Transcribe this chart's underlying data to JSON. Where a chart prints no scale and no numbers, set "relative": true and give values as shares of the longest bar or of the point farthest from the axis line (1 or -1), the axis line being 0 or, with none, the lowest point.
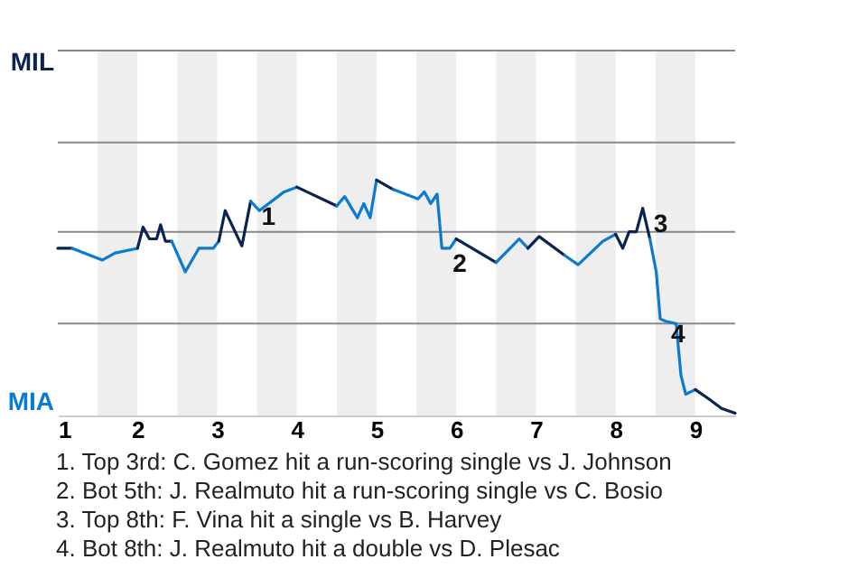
{
  "chart_data": {
    "type": "line",
    "relative": true,
    "xlim": [
      1,
      9.5
    ],
    "xticks": [
      1,
      2,
      3,
      4,
      5,
      6,
      7,
      8,
      9
    ],
    "ref_lines": [
      {
        "axis": "y",
        "value": 0.39,
        "color": "#888888"
      },
      {
        "axis": "y",
        "value": 0.78,
        "color": "#888888"
      },
      {
        "axis": "y",
        "value": 1.16,
        "color": "#888888"
      },
      {
        "axis": "y",
        "value": 1.55,
        "color": "#888888"
      }
    ],
    "bands": [
      {
        "axis": "x",
        "from": 1.5,
        "to": 2,
        "color": "#eeeeee"
      },
      {
        "axis": "x",
        "from": 2.5,
        "to": 3,
        "color": "#eeeeee"
      },
      {
        "axis": "x",
        "from": 3.5,
        "to": 4,
        "color": "#eeeeee"
      },
      {
        "axis": "x",
        "from": 4.5,
        "to": 5,
        "color": "#eeeeee"
      },
      {
        "axis": "x",
        "from": 5.5,
        "to": 6,
        "color": "#eeeeee"
      },
      {
        "axis": "x",
        "from": 6.5,
        "to": 7,
        "color": "#eeeeee"
      },
      {
        "axis": "x",
        "from": 7.5,
        "to": 8,
        "color": "#eeeeee"
      },
      {
        "axis": "x",
        "from": 8.5,
        "to": 9,
        "color": "#eeeeee"
      }
    ],
    "series": [
      {
        "color": "#0a2351",
        "x": [
          1,
          1.18
        ],
        "values": [
          0.71,
          0.71
        ]
      },
      {
        "color": "#0a7bd0",
        "x": [
          1.18,
          1.56,
          1.72,
          2
        ],
        "values": [
          0.71,
          0.66,
          0.69,
          0.71
        ]
      },
      {
        "color": "#0a2351",
        "x": [
          2,
          2.07,
          2.15,
          2.24,
          2.29,
          2.35,
          2.43
        ],
        "values": [
          0.71,
          0.8,
          0.75,
          0.75,
          0.81,
          0.74,
          0.74
        ]
      },
      {
        "color": "#0a7bd0",
        "x": [
          2.43,
          2.6,
          2.77,
          2.95,
          3.02
        ],
        "values": [
          0.74,
          0.61,
          0.71,
          0.71,
          0.74
        ]
      },
      {
        "color": "#0a2351",
        "x": [
          3.02,
          3.1,
          3.31,
          3.42
        ],
        "values": [
          0.74,
          0.87,
          0.72,
          0.91
        ]
      },
      {
        "color": "#0a7bd0",
        "x": [
          3.42,
          3.53,
          3.84,
          4
        ],
        "values": [
          0.91,
          0.87,
          0.95,
          0.97
        ]
      },
      {
        "color": "#0a2351",
        "x": [
          4,
          4.5
        ],
        "values": [
          0.97,
          0.89
        ]
      },
      {
        "color": "#0a7bd0",
        "x": [
          4.5,
          4.6,
          4.76,
          4.84,
          4.92,
          5
        ],
        "values": [
          0.89,
          0.93,
          0.84,
          0.9,
          0.84,
          1
        ]
      },
      {
        "color": "#0a2351",
        "x": [
          5,
          5.21
        ],
        "values": [
          1,
          0.96
        ]
      },
      {
        "color": "#0a7bd0",
        "x": [
          5.21,
          5.52,
          5.6,
          5.68,
          5.76,
          5.82,
          5.92,
          6
        ],
        "values": [
          0.96,
          0.92,
          0.95,
          0.9,
          0.94,
          0.71,
          0.71,
          0.75
        ]
      },
      {
        "color": "#0a2351",
        "x": [
          6,
          6.5
        ],
        "values": [
          0.75,
          0.65
        ]
      },
      {
        "color": "#0a7bd0",
        "x": [
          6.5,
          6.79,
          6.9
        ],
        "values": [
          0.65,
          0.75,
          0.71
        ]
      },
      {
        "color": "#0a2351",
        "x": [
          6.9,
          7.04,
          7.36
        ],
        "values": [
          0.71,
          0.76,
          0.68
        ]
      },
      {
        "color": "#0a7bd0",
        "x": [
          7.36,
          7.53,
          7.84,
          8
        ],
        "values": [
          0.68,
          0.64,
          0.74,
          0.77
        ]
      },
      {
        "color": "#0a2351",
        "x": [
          8,
          8.09,
          8.17,
          8.26,
          8.34,
          8.43
        ],
        "values": [
          0.77,
          0.71,
          0.78,
          0.78,
          0.88,
          0.75
        ]
      },
      {
        "color": "#0a7bd0",
        "x": [
          8.43,
          8.51,
          8.56,
          8.63,
          8.76,
          8.82,
          8.88,
          9
        ],
        "values": [
          0.75,
          0.61,
          0.41,
          0.4,
          0.39,
          0.17,
          0.09,
          0.11
        ]
      },
      {
        "color": "#0a2351",
        "x": [
          9,
          9.17,
          9.33,
          9.5
        ],
        "values": [
          0.11,
          0.07,
          0.03,
          0.01
        ]
      }
    ],
    "annotations": [
      "MIL",
      "MIA",
      {
        "text": "1",
        "x": 3.42,
        "y": 0.91
      },
      {
        "text": "2",
        "x": 5.82,
        "y": 0.71
      },
      {
        "text": "3",
        "x": 8.34,
        "y": 0.88
      },
      {
        "text": "4",
        "x": 8.56,
        "y": 0.41
      },
      "1. Top 3rd: C. Gomez hit a run-scoring single vs J. Johnson",
      "2. Bot 5th: J. Realmuto hit a run-scoring single vs C. Bosio",
      "3. Top 8th: F. Vina hit a single vs B. Harvey",
      "4. Bot 8th: J. Realmuto hit a double vs D. Plesac"
    ]
  }
}
